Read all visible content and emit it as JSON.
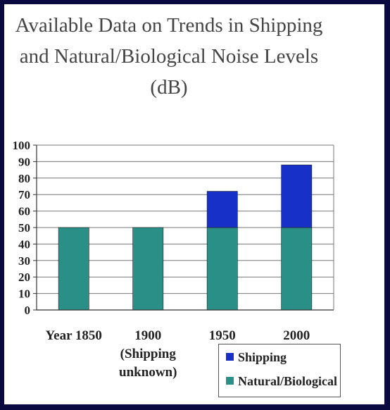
{
  "chart_data": {
    "type": "bar",
    "stacked": true,
    "title_lines": [
      "Available Data on Trends in Shipping",
      "and Natural/Biological Noise Levels",
      "(dB)"
    ],
    "categories": [
      "Year 1850",
      "1900",
      "1950",
      "2000"
    ],
    "category_notes": [
      "",
      "(Shipping unknown)",
      "",
      ""
    ],
    "category_note_lines": [
      [],
      [
        "(Shipping",
        "unknown)"
      ],
      [],
      []
    ],
    "series": [
      {
        "name": "Natural/Biological",
        "color": "#2a8f86",
        "values": [
          50,
          50,
          50,
          50
        ]
      },
      {
        "name": "Shipping",
        "color": "#1630c8",
        "values": [
          0,
          0,
          22,
          38
        ]
      }
    ],
    "ylim": [
      0,
      100
    ],
    "yticks": [
      "0",
      "10",
      "20",
      "30",
      "40",
      "50",
      "60",
      "70",
      "80",
      "90",
      "100"
    ],
    "grid": true,
    "legend_position": "bottom-right"
  }
}
